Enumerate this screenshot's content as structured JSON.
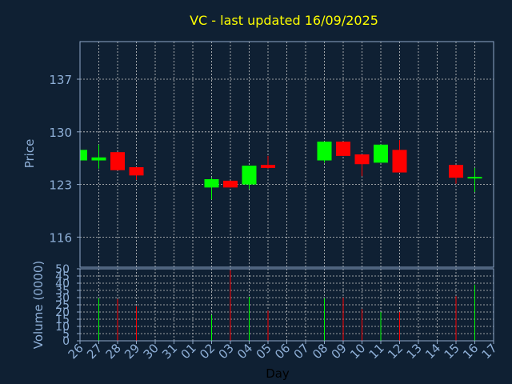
{
  "chart_data": {
    "type": "candlestick",
    "title": "VC - last updated 16/09/2025",
    "xlabel": "Day",
    "ylabel_price": "Price",
    "ylabel_volume": "Volume (0000)",
    "price_ticks": [
      116,
      123,
      130,
      137
    ],
    "price_ylim": [
      112,
      142
    ],
    "volume_ticks": [
      0,
      5,
      10,
      15,
      20,
      25,
      30,
      35,
      40,
      45,
      50
    ],
    "volume_ylim": [
      0,
      50
    ],
    "x_labels": [
      "26",
      "27",
      "28",
      "29",
      "30",
      "31",
      "01",
      "02",
      "03",
      "04",
      "05",
      "06",
      "07",
      "08",
      "09",
      "10",
      "11",
      "12",
      "13",
      "14",
      "15",
      "16",
      "17"
    ],
    "candles": [
      {
        "x": 0,
        "open": 126.2,
        "close": 127.6,
        "high": 127.6,
        "low": 126.2,
        "volume": 0
      },
      {
        "x": 1,
        "open": 126.2,
        "close": 126.6,
        "high": 128.3,
        "low": 125.1,
        "volume": 29.5
      },
      {
        "x": 2,
        "open": 127.3,
        "close": 124.9,
        "high": 127.3,
        "low": 124.9,
        "volume": 29
      },
      {
        "x": 3,
        "open": 125.3,
        "close": 124.2,
        "high": 125.3,
        "low": 123.6,
        "volume": 24
      },
      {
        "x": 7,
        "open": 122.6,
        "close": 123.7,
        "high": 123.9,
        "low": 121.0,
        "volume": 18
      },
      {
        "x": 8,
        "open": 123.5,
        "close": 122.6,
        "high": 123.5,
        "low": 122.6,
        "volume": 49
      },
      {
        "x": 9,
        "open": 123.0,
        "close": 125.5,
        "high": 125.5,
        "low": 122.4,
        "volume": 30.5
      },
      {
        "x": 10,
        "open": 125.6,
        "close": 125.2,
        "high": 126.8,
        "low": 125.1,
        "volume": 21
      },
      {
        "x": 13,
        "open": 126.2,
        "close": 128.7,
        "high": 128.7,
        "low": 125.9,
        "volume": 29.5
      },
      {
        "x": 14,
        "open": 128.7,
        "close": 126.8,
        "high": 128.7,
        "low": 126.8,
        "volume": 30
      },
      {
        "x": 15,
        "open": 127.0,
        "close": 125.7,
        "high": 127.0,
        "low": 124.1,
        "volume": 22
      },
      {
        "x": 16,
        "open": 125.9,
        "close": 128.3,
        "high": 128.3,
        "low": 125.9,
        "volume": 20
      },
      {
        "x": 17,
        "open": 127.6,
        "close": 124.6,
        "high": 128.9,
        "low": 124.6,
        "volume": 20
      },
      {
        "x": 20,
        "open": 125.6,
        "close": 123.9,
        "high": 125.6,
        "low": 123.1,
        "volume": 31
      },
      {
        "x": 21,
        "open": 123.8,
        "close": 124.0,
        "high": 125.2,
        "low": 122.0,
        "volume": 39
      }
    ],
    "colors": {
      "background": "#0f2033",
      "up": "#00ff00",
      "down": "#ff0000",
      "title": "#ffff00",
      "axis_text": "#8fb0d8",
      "frame": "#8fa8c8",
      "grid": "#c8c8c8",
      "xlabel": "#000000"
    },
    "grid": true
  }
}
